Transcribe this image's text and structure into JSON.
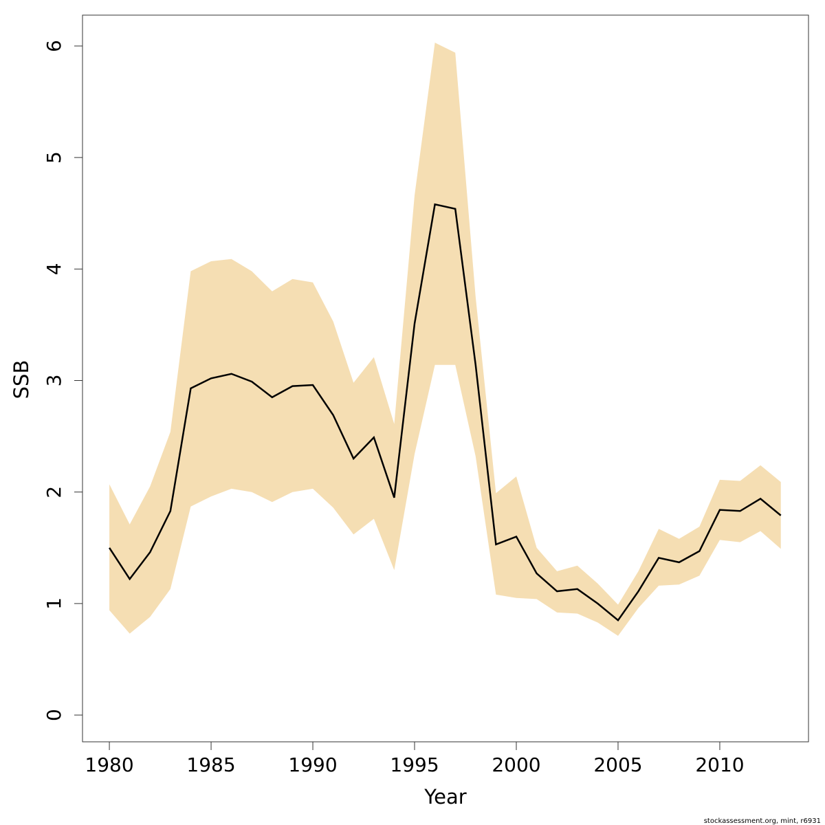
{
  "chart_data": {
    "type": "line",
    "x_label": "Year",
    "y_label": "SSB",
    "footer": "stockassessment.org, mint, r6931",
    "x": [
      1980,
      1981,
      1982,
      1983,
      1984,
      1985,
      1986,
      1987,
      1988,
      1989,
      1990,
      1991,
      1992,
      1993,
      1994,
      1995,
      1996,
      1997,
      1998,
      1999,
      2000,
      2001,
      2002,
      2003,
      2004,
      2005,
      2006,
      2007,
      2008,
      2009,
      2010,
      2011,
      2012,
      2013
    ],
    "series": [
      {
        "color": "#000000",
        "values": [
          1.5,
          1.22,
          1.46,
          1.83,
          2.93,
          3.02,
          3.06,
          2.99,
          2.85,
          2.95,
          2.96,
          2.69,
          2.3,
          2.49,
          1.95,
          3.51,
          4.58,
          4.54,
          3.14,
          1.53,
          1.6,
          1.27,
          1.11,
          1.13,
          1.0,
          0.85,
          1.11,
          1.41,
          1.37,
          1.47,
          1.84,
          1.83,
          1.94,
          1.79
        ]
      }
    ],
    "band": {
      "color": "#f5deb3",
      "upper": [
        2.07,
        1.71,
        2.05,
        2.54,
        3.98,
        4.07,
        4.09,
        3.98,
        3.8,
        3.91,
        3.88,
        3.53,
        2.98,
        3.21,
        2.61,
        4.66,
        6.03,
        5.94,
        3.75,
        1.99,
        2.14,
        1.5,
        1.29,
        1.34,
        1.18,
        0.99,
        1.29,
        1.67,
        1.58,
        1.69,
        2.11,
        2.1,
        2.24,
        2.09
      ],
      "lower": [
        0.94,
        0.73,
        0.88,
        1.13,
        1.87,
        1.96,
        2.03,
        2.0,
        1.91,
        2.0,
        2.03,
        1.86,
        1.62,
        1.76,
        1.3,
        2.34,
        3.14,
        3.14,
        2.32,
        1.08,
        1.05,
        1.04,
        0.92,
        0.91,
        0.83,
        0.71,
        0.96,
        1.16,
        1.17,
        1.25,
        1.57,
        1.55,
        1.65,
        1.49
      ]
    },
    "xlim": [
      1978.68,
      2014.36
    ],
    "xticks": [
      1980,
      1985,
      1990,
      1995,
      2000,
      2005,
      2010
    ],
    "ylim": [
      -0.24,
      6.277
    ],
    "yticks": [
      0,
      1,
      2,
      3,
      4,
      5,
      6
    ]
  }
}
